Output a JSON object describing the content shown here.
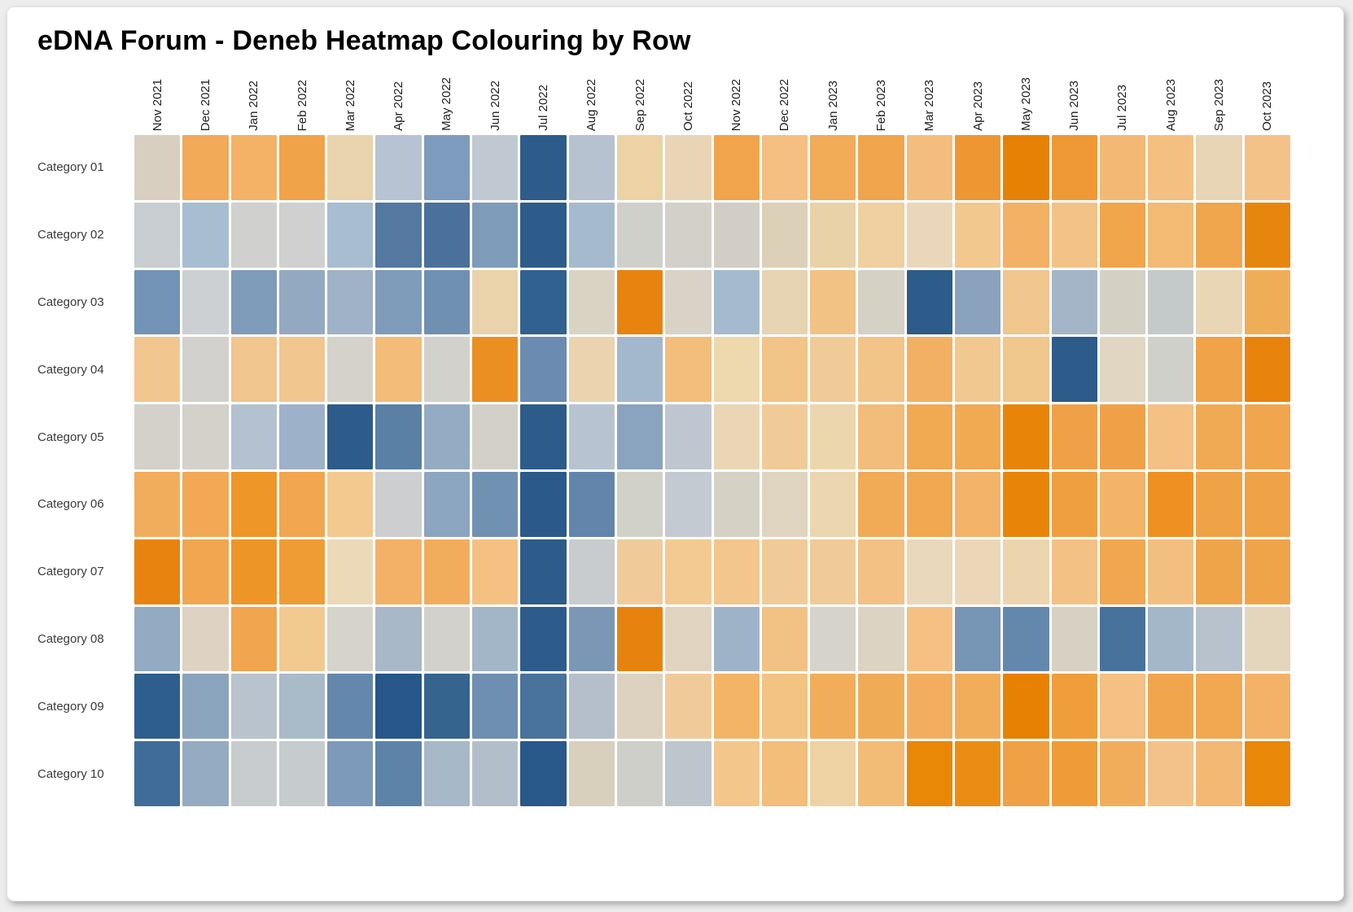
{
  "card": {
    "title": "eDNA Forum - Deneb Heatmap Colouring by Row"
  },
  "chart_data": {
    "type": "heatmap",
    "title": "eDNA Forum - Deneb Heatmap Colouring by Row",
    "xlabel": "",
    "ylabel": "",
    "legend": "none",
    "grid": "off",
    "x_categories": [
      "Nov 2021",
      "Dec 2021",
      "Jan 2022",
      "Feb 2022",
      "Mar 2022",
      "Apr 2022",
      "May 2022",
      "Jun 2022",
      "Jul 2022",
      "Aug 2022",
      "Sep 2022",
      "Oct 2022",
      "Nov 2022",
      "Dec 2022",
      "Jan 2023",
      "Feb 2023",
      "Mar 2023",
      "Apr 2023",
      "May 2023",
      "Jun 2023",
      "Jul 2023",
      "Aug 2023",
      "Sep 2023",
      "Oct 2023"
    ],
    "y_categories": [
      "Category 01",
      "Category 02",
      "Category 03",
      "Category 04",
      "Category 05",
      "Category 06",
      "Category 07",
      "Category 08",
      "Category 09",
      "Category 10"
    ],
    "colour_scale": {
      "description": "diverging blue-grey-orange, scaled independently per row; low = dark blue, mid = grey/beige, high = dark orange",
      "low": "#2d5c8a",
      "mid": "#d3d1ca",
      "high": "#e68104"
    },
    "cell_colors": [
      [
        "#d8cfc0",
        "#f2a958",
        "#f3b266",
        "#f0a348",
        "#e9d3ad",
        "#b7c3d2",
        "#7d9cbd",
        "#c0c9d2",
        "#2d5c8a",
        "#b6c2cf",
        "#ecd2a4",
        "#e9d5b5",
        "#f1a44c",
        "#f4bf80",
        "#f2ab57",
        "#f0a44c",
        "#f3bd7e",
        "#ee9732",
        "#e68106",
        "#ef9836",
        "#f3b874",
        "#f3c081",
        "#e7d5b5",
        "#f2c289"
      ],
      [
        "#c8cdd1",
        "#a9bdd1",
        "#d0d1ce",
        "#cfd0cf",
        "#a9bdd1",
        "#54789f",
        "#4a719b",
        "#7e9cba",
        "#2d5c8a",
        "#a5bacd",
        "#d0d0ca",
        "#d2d0c8",
        "#d2cec5",
        "#ddd0b9",
        "#e9d2a8",
        "#f0cfa0",
        "#ead7bb",
        "#f2c88f",
        "#f2b164",
        "#f3c286",
        "#f0a54b",
        "#f3ba73",
        "#efa64d",
        "#e7860d"
      ],
      [
        "#7293b5",
        "#ccd0d2",
        "#7e9cba",
        "#93a9c1",
        "#9fb2c7",
        "#7e9cba",
        "#7090b2",
        "#ead3ab",
        "#31618f",
        "#d9d3c3",
        "#e8830f",
        "#d8d3c6",
        "#a5bace",
        "#e6d3b2",
        "#f2c184",
        "#d5d1c5",
        "#2d5c8a",
        "#8aa2bd",
        "#f0c58e",
        "#a3b5c7",
        "#d4d0c4",
        "#c4cac9",
        "#e9d6b4",
        "#f0ad58"
      ],
      [
        "#f2c68f",
        "#d2d1cd",
        "#f1c58e",
        "#f2c68f",
        "#d4d2cb",
        "#f3bc79",
        "#d2d1cb",
        "#ec8f22",
        "#6b8cb0",
        "#ead3ae",
        "#a3b8cc",
        "#f3bd7c",
        "#eed8ae",
        "#f2c488",
        "#f0cb97",
        "#f2c488",
        "#f2b063",
        "#f1c88f",
        "#f0c78c",
        "#2d5c8a",
        "#e0d6c1",
        "#d0d0cb",
        "#f0a347",
        "#e8830c"
      ],
      [
        "#d3d1ca",
        "#d3d1ca",
        "#b3c1d1",
        "#9db1c8",
        "#2d5c8a",
        "#5a80a6",
        "#94abc4",
        "#d3d0c7",
        "#2d5c8a",
        "#b7c3d0",
        "#8aa3be",
        "#bec7d0",
        "#ead6b4",
        "#f0cb97",
        "#ecd6ae",
        "#f2bc7a",
        "#f1a952",
        "#f1a952",
        "#e88508",
        "#f0a148",
        "#f0a148",
        "#f4c084",
        "#f1aa54",
        "#f1a64e"
      ],
      [
        "#f2ad5c",
        "#f2a855",
        "#ee9628",
        "#f1a64f",
        "#f4c98f",
        "#ccced0",
        "#8ca5c0",
        "#7191b3",
        "#2b598a",
        "#6385ab",
        "#d2d1c8",
        "#c3cad2",
        "#d5d1c5",
        "#dfd4c0",
        "#ecd6b0",
        "#f1ab57",
        "#f1a850",
        "#f3b368",
        "#e88508",
        "#f09f40",
        "#f3b368",
        "#ee9122",
        "#f0a247",
        "#f0a247"
      ],
      [
        "#e8830f",
        "#f1a64f",
        "#ee9528",
        "#ef9c35",
        "#ecd9b8",
        "#f2b166",
        "#f1ad5c",
        "#f4c183",
        "#2d5c8a",
        "#c8cccf",
        "#f0cb99",
        "#f3ca92",
        "#f2c68c",
        "#f0cb97",
        "#f0cb97",
        "#f2c183",
        "#ead8bc",
        "#ebd7b8",
        "#ecd5ae",
        "#f3c183",
        "#f1a750",
        "#f3bf80",
        "#f0a44a",
        "#f0a44a"
      ],
      [
        "#92aac2",
        "#ded3c2",
        "#f0a54e",
        "#f2c98f",
        "#d6d3ca",
        "#a8b8c8",
        "#d3d1cb",
        "#a3b6c8",
        "#2d5c8c",
        "#7b97b5",
        "#e8820e",
        "#e0d4c0",
        "#9fb3c8",
        "#f2c284",
        "#d5d3cc",
        "#ddd3c2",
        "#f4c183",
        "#7795b5",
        "#6388ac",
        "#d6d1c2",
        "#47729c",
        "#a4b7c9",
        "#b8c2cc",
        "#e4d6bd"
      ],
      [
        "#2e5e8e",
        "#8ba4bd",
        "#b9c3cd",
        "#a9bac9",
        "#6488ad",
        "#27568a",
        "#35648f",
        "#6e8fb1",
        "#49729c",
        "#b4bfcb",
        "#ddd2c0",
        "#f0cb99",
        "#f3b466",
        "#f3c382",
        "#f2ad5a",
        "#f0ab57",
        "#f2ae5e",
        "#f2ad5a",
        "#e68104",
        "#ef9e3b",
        "#f4c083",
        "#f1a64d",
        "#f1a850",
        "#f3b267"
      ],
      [
        "#3f6c99",
        "#94abc1",
        "#c8ccce",
        "#c6cbce",
        "#7e9aba",
        "#5d83a9",
        "#a7b8c8",
        "#b2bfcb",
        "#29588a",
        "#d8cfbd",
        "#cfcfc9",
        "#bdc5cd",
        "#f3c68c",
        "#f3bd7a",
        "#eed2a4",
        "#f2bb76",
        "#e98706",
        "#ec8d13",
        "#f0a145",
        "#ef9c38",
        "#f2ad5c",
        "#f3c28a",
        "#f3b874",
        "#e98708"
      ]
    ]
  }
}
